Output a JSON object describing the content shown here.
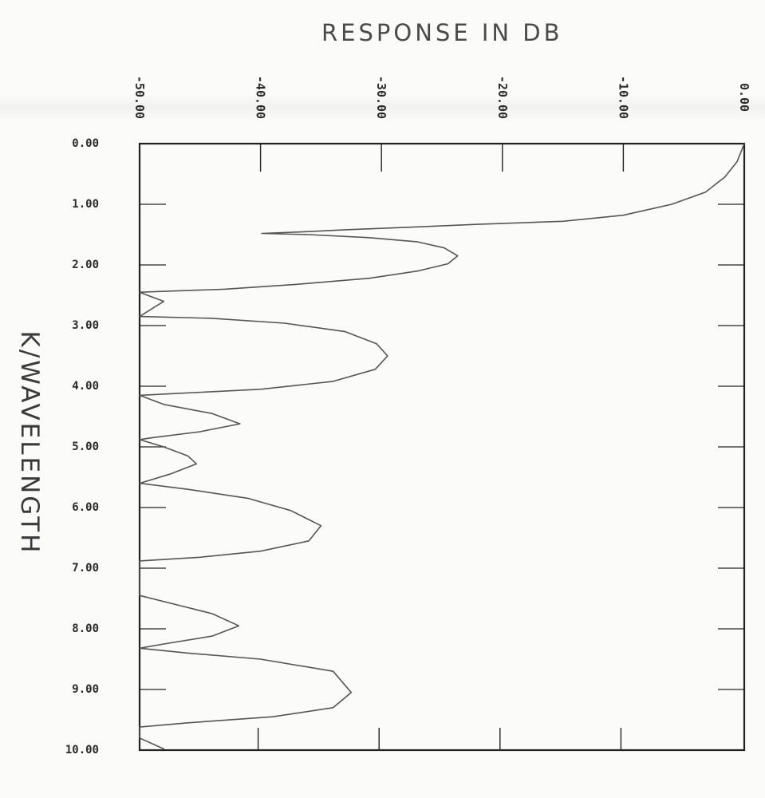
{
  "chart_data": {
    "type": "line",
    "title": "RESPONSE IN DB",
    "xlabel": "RESPONSE IN DB",
    "ylabel": "K/WAVELENGTH",
    "x_axis_position": "top",
    "x_ticks": [
      "-50.00",
      "-40.00",
      "-30.00",
      "-20.00",
      "-10.00",
      "0.00"
    ],
    "y_ticks": [
      "0.00",
      "1.00",
      "2.00",
      "3.00",
      "4.00",
      "5.00",
      "6.00",
      "7.00",
      "8.00",
      "9.00",
      "10.00"
    ],
    "xlim": [
      -50,
      0
    ],
    "ylim": [
      0,
      10
    ],
    "grid": false,
    "series": [
      {
        "points": [
          [
            0,
            0
          ],
          [
            -0.6,
            0.3
          ],
          [
            -1.6,
            0.55
          ],
          [
            -3.2,
            0.8
          ],
          [
            -6,
            1.0
          ],
          [
            -10,
            1.18
          ],
          [
            -15,
            1.28
          ],
          [
            -22,
            1.33
          ],
          [
            -28,
            1.38
          ],
          [
            -33,
            1.42
          ],
          [
            -36,
            1.45
          ],
          [
            -39.9,
            1.48
          ],
          [
            -36,
            1.5
          ],
          [
            -31,
            1.55
          ],
          [
            -27,
            1.62
          ],
          [
            -24.8,
            1.72
          ],
          [
            -23.7,
            1.85
          ],
          [
            -24.5,
            1.98
          ],
          [
            -27,
            2.1
          ],
          [
            -31,
            2.22
          ],
          [
            -37,
            2.32
          ],
          [
            -43,
            2.4
          ],
          [
            -50,
            2.45
          ],
          [
            -48,
            2.6
          ],
          [
            -50,
            2.85
          ],
          [
            -44,
            2.88
          ],
          [
            -38,
            2.96
          ],
          [
            -33,
            3.1
          ],
          [
            -30.4,
            3.3
          ],
          [
            -29.5,
            3.5
          ],
          [
            -30.5,
            3.72
          ],
          [
            -34,
            3.92
          ],
          [
            -40,
            4.05
          ],
          [
            -47,
            4.12
          ],
          [
            -50,
            4.15
          ],
          [
            -48,
            4.3
          ],
          [
            -44,
            4.45
          ],
          [
            -41.7,
            4.62
          ],
          [
            -45,
            4.75
          ],
          [
            -49,
            4.85
          ],
          [
            -50,
            4.88
          ],
          [
            -48,
            5.0
          ],
          [
            -46,
            5.15
          ],
          [
            -45.3,
            5.28
          ],
          [
            -47.5,
            5.45
          ],
          [
            -50,
            5.6
          ],
          [
            -46,
            5.7
          ],
          [
            -41,
            5.85
          ],
          [
            -37.5,
            6.05
          ],
          [
            -35,
            6.3
          ],
          [
            -36,
            6.55
          ],
          [
            -40,
            6.72
          ],
          [
            -45,
            6.82
          ],
          [
            -50,
            6.88
          ],
          [
            -50,
            7.45
          ],
          [
            -47,
            7.6
          ],
          [
            -44,
            7.75
          ],
          [
            -41.8,
            7.95
          ],
          [
            -44,
            8.12
          ],
          [
            -48,
            8.25
          ],
          [
            -50,
            8.32
          ],
          [
            -46,
            8.4
          ],
          [
            -40,
            8.5
          ],
          [
            -34,
            8.7
          ],
          [
            -32.5,
            9.05
          ],
          [
            -34,
            9.3
          ],
          [
            -39,
            9.45
          ],
          [
            -46,
            9.55
          ],
          [
            -50,
            9.62
          ],
          [
            -50,
            9.8
          ],
          [
            -48,
            9.98
          ]
        ]
      }
    ],
    "colors": {
      "line": "#555555",
      "axes": "#222222"
    }
  }
}
